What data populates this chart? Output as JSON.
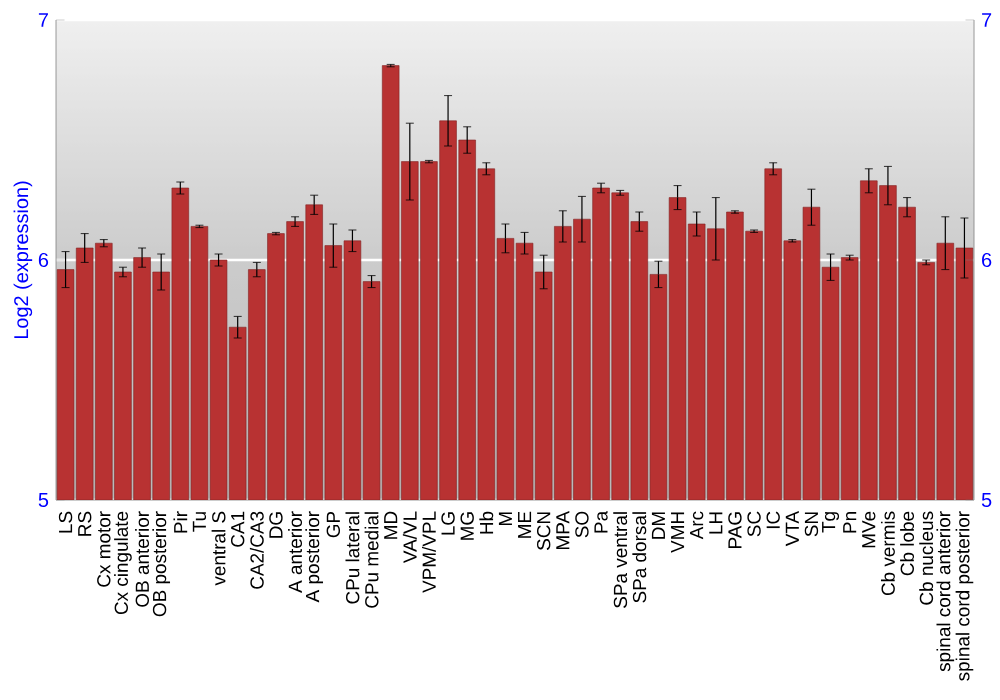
{
  "chart_data": {
    "type": "bar",
    "ylabel": "Log2 (expression)",
    "categories": [
      "LS",
      "RS",
      "Cx motor",
      "Cx cingulate",
      "OB anterior",
      "OB posterior",
      "Pir",
      "Tu",
      "ventral S",
      "CA1",
      "CA2/CA3",
      "DG",
      "A anterior",
      "A posterior",
      "GP",
      "CPu lateral",
      "CPu medial",
      "MD",
      "VA/VL",
      "VPM/VPL",
      "LG",
      "MG",
      "Hb",
      "M",
      "ME",
      "SCN",
      "MPA",
      "SO",
      "Pa",
      "SPa ventral",
      "SPa dorsal",
      "DM",
      "VMH",
      "Arc",
      "LH",
      "PAG",
      "SC",
      "IC",
      "VTA",
      "SN",
      "Tg",
      "Pn",
      "MVe",
      "Cb vermis",
      "Cb lobe",
      "Cb nucleus",
      "spinal cord anterior",
      "spinal cord posterior"
    ],
    "values": [
      5.96,
      6.05,
      6.07,
      5.95,
      6.01,
      5.95,
      6.3,
      6.14,
      6.0,
      5.72,
      5.96,
      6.11,
      6.16,
      6.23,
      6.06,
      6.08,
      5.91,
      6.81,
      6.41,
      6.41,
      6.58,
      6.5,
      6.38,
      6.09,
      6.07,
      5.95,
      6.14,
      6.17,
      6.3,
      6.28,
      6.16,
      5.94,
      6.26,
      6.15,
      6.13,
      6.2,
      6.12,
      6.38,
      6.08,
      6.22,
      5.97,
      6.01,
      6.33,
      6.31,
      6.22,
      5.99,
      6.07,
      6.05
    ],
    "errors": [
      0.075,
      0.06,
      0.015,
      0.02,
      0.04,
      0.075,
      0.025,
      0.005,
      0.025,
      0.045,
      0.03,
      0.005,
      0.02,
      0.04,
      0.09,
      0.045,
      0.025,
      0.005,
      0.16,
      0.005,
      0.105,
      0.055,
      0.025,
      0.06,
      0.045,
      0.07,
      0.065,
      0.095,
      0.02,
      0.01,
      0.04,
      0.055,
      0.05,
      0.05,
      0.13,
      0.005,
      0.005,
      0.025,
      0.005,
      0.075,
      0.055,
      0.01,
      0.05,
      0.08,
      0.04,
      0.01,
      0.11,
      0.125
    ],
    "color": "#b83232",
    "ylim": [
      5,
      7
    ],
    "yticks": [
      5,
      6,
      7
    ],
    "y2lim": [
      5,
      7
    ],
    "y2ticks": [
      5,
      6,
      7
    ],
    "grid": "y"
  }
}
